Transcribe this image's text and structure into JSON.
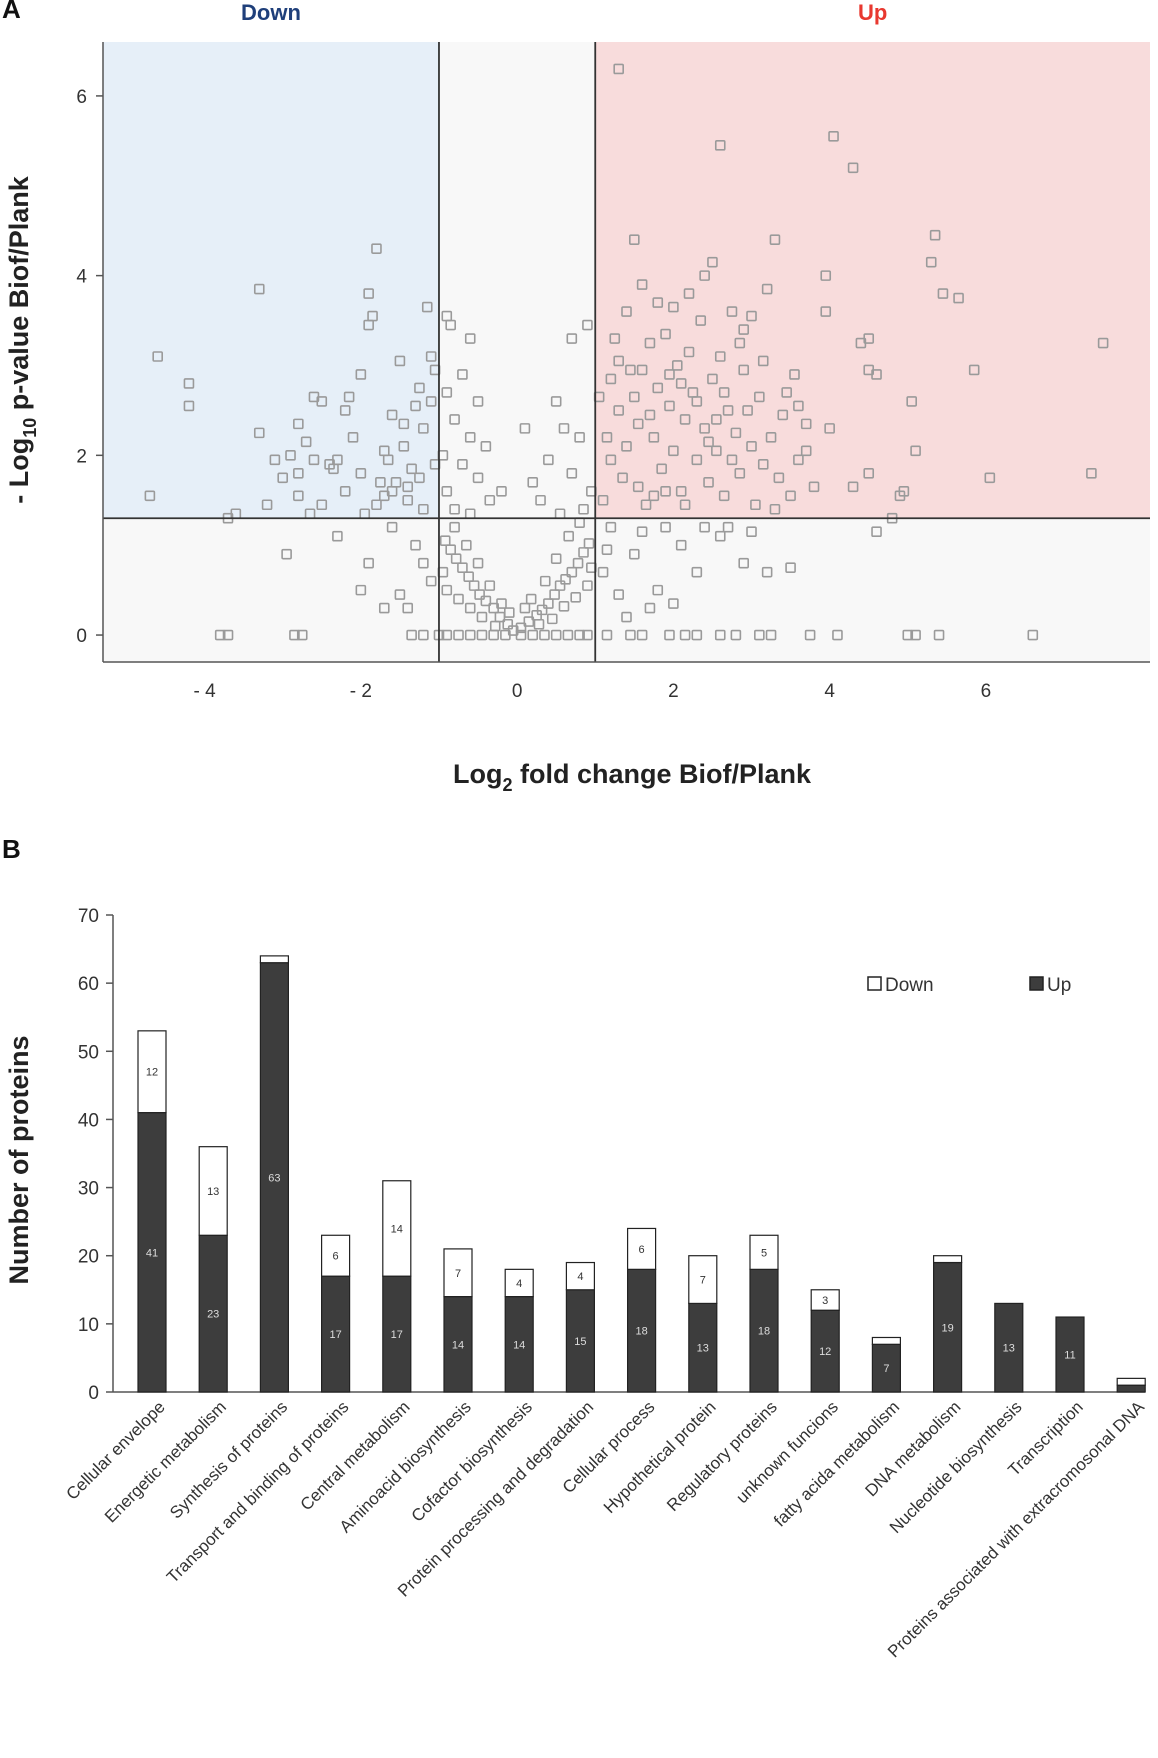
{
  "chart_data": [
    {
      "panel": "A",
      "type": "scatter",
      "title": "",
      "xlabel_prefix": "Log",
      "xlabel_sub": "2",
      "xlabel_rest": " fold change Biof/Plank",
      "ylabel_prefix": "- Log",
      "ylabel_sub": "10",
      "ylabel_rest": " p-value Biof/Plank",
      "xlim": [
        -5.3,
        8.1
      ],
      "ylim": [
        -0.3,
        6.6
      ],
      "xticks": [
        -4,
        -2,
        0,
        2,
        4,
        6
      ],
      "xtick_labels": [
        "- 4",
        "- 2",
        "0",
        "2",
        "4",
        "6"
      ],
      "yticks": [
        0,
        2,
        4,
        6
      ],
      "ytick_labels": [
        "0",
        "2",
        "4",
        "6"
      ],
      "thresholds": {
        "fold_change": [
          -1,
          1
        ],
        "neg_log10_p": 1.3
      },
      "regions": [
        {
          "name": "Down",
          "color": "#1f3f7a",
          "fill": "#e6eff8"
        },
        {
          "name": "Up",
          "color": "#e8382f",
          "fill": "#f8dcdc"
        }
      ],
      "point_color": "#9a9a9a",
      "background_fill": "#f8f8f8",
      "points_highlighted": [
        [
          -4.6,
          3.1
        ],
        [
          -4.2,
          2.8
        ],
        [
          -4.2,
          2.55
        ],
        [
          -4.7,
          1.55
        ],
        [
          -3.7,
          1.3
        ],
        [
          -3.6,
          1.35
        ],
        [
          -3.3,
          3.85
        ],
        [
          -3.3,
          2.25
        ],
        [
          -3.2,
          1.45
        ],
        [
          -3.1,
          1.95
        ],
        [
          -2.9,
          2.0
        ],
        [
          -2.95,
          0.9
        ],
        [
          -2.8,
          2.35
        ],
        [
          -2.8,
          1.8
        ],
        [
          -2.7,
          2.15
        ],
        [
          -2.6,
          2.65
        ],
        [
          -2.5,
          2.6
        ],
        [
          -2.4,
          1.9
        ],
        [
          -2.3,
          1.95
        ],
        [
          -2.2,
          2.5
        ],
        [
          -2.1,
          2.2
        ],
        [
          -2.0,
          1.8
        ],
        [
          -1.9,
          3.45
        ],
        [
          -1.85,
          3.55
        ],
        [
          -1.9,
          3.8
        ],
        [
          -1.8,
          4.3
        ],
        [
          -1.75,
          1.7
        ],
        [
          -1.7,
          2.05
        ],
        [
          -1.6,
          1.6
        ],
        [
          -1.6,
          2.45
        ],
        [
          -1.5,
          3.05
        ],
        [
          -1.45,
          2.1
        ],
        [
          -1.4,
          1.5
        ],
        [
          -1.3,
          2.55
        ],
        [
          -1.25,
          2.75
        ],
        [
          -1.2,
          2.3
        ],
        [
          -1.15,
          3.65
        ],
        [
          -1.1,
          3.1
        ],
        [
          -1.05,
          1.9
        ],
        [
          -1.05,
          2.95
        ],
        [
          -2.5,
          1.45
        ],
        [
          -2.0,
          2.9
        ],
        [
          -2.2,
          1.6
        ],
        [
          -1.8,
          1.45
        ],
        [
          -1.35,
          1.85
        ],
        [
          -3.0,
          1.75
        ],
        [
          -2.65,
          1.35
        ],
        [
          -1.55,
          1.7
        ],
        [
          -1.7,
          1.55
        ],
        [
          -1.2,
          1.4
        ],
        [
          -2.8,
          1.55
        ],
        [
          -1.95,
          1.35
        ],
        [
          -1.45,
          2.35
        ],
        [
          -2.35,
          1.85
        ],
        [
          -1.65,
          1.95
        ],
        [
          -1.25,
          1.75
        ],
        [
          -2.15,
          2.65
        ],
        [
          -1.1,
          2.6
        ],
        [
          -1.4,
          1.65
        ],
        [
          -2.6,
          1.95
        ],
        [
          1.3,
          6.3
        ],
        [
          2.6,
          5.45
        ],
        [
          4.05,
          5.55
        ],
        [
          4.3,
          5.2
        ],
        [
          3.3,
          4.4
        ],
        [
          1.5,
          4.4
        ],
        [
          5.35,
          4.45
        ],
        [
          5.3,
          4.15
        ],
        [
          5.45,
          3.8
        ],
        [
          5.65,
          3.75
        ],
        [
          7.5,
          3.25
        ],
        [
          2.5,
          4.15
        ],
        [
          2.4,
          4.0
        ],
        [
          2.2,
          3.8
        ],
        [
          2.0,
          3.65
        ],
        [
          3.2,
          3.85
        ],
        [
          3.0,
          3.55
        ],
        [
          2.9,
          3.4
        ],
        [
          1.6,
          3.9
        ],
        [
          1.8,
          3.7
        ],
        [
          3.95,
          4.0
        ],
        [
          3.95,
          3.6
        ],
        [
          4.5,
          3.3
        ],
        [
          4.4,
          3.25
        ],
        [
          4.5,
          2.95
        ],
        [
          4.6,
          2.9
        ],
        [
          5.85,
          2.95
        ],
        [
          5.05,
          2.6
        ],
        [
          5.1,
          2.05
        ],
        [
          6.05,
          1.75
        ],
        [
          7.35,
          1.8
        ],
        [
          4.0,
          2.3
        ],
        [
          3.6,
          2.55
        ],
        [
          3.7,
          2.35
        ],
        [
          4.3,
          1.65
        ],
        [
          4.5,
          1.8
        ],
        [
          4.9,
          1.55
        ],
        [
          4.95,
          1.6
        ],
        [
          4.6,
          1.15
        ],
        [
          4.8,
          1.3
        ],
        [
          1.2,
          2.85
        ],
        [
          1.25,
          3.3
        ],
        [
          1.3,
          2.5
        ],
        [
          1.4,
          2.1
        ],
        [
          1.4,
          3.6
        ],
        [
          1.5,
          2.65
        ],
        [
          1.55,
          1.65
        ],
        [
          1.6,
          2.95
        ],
        [
          1.7,
          3.25
        ],
        [
          1.75,
          2.2
        ],
        [
          1.8,
          2.75
        ],
        [
          1.85,
          1.85
        ],
        [
          1.9,
          3.35
        ],
        [
          1.95,
          2.55
        ],
        [
          2.0,
          2.05
        ],
        [
          2.05,
          3.0
        ],
        [
          2.1,
          1.6
        ],
        [
          2.15,
          2.4
        ],
        [
          2.2,
          3.15
        ],
        [
          2.25,
          2.7
        ],
        [
          2.3,
          1.95
        ],
        [
          2.35,
          3.5
        ],
        [
          2.4,
          2.3
        ],
        [
          2.45,
          1.7
        ],
        [
          2.5,
          2.85
        ],
        [
          2.55,
          2.05
        ],
        [
          2.6,
          3.1
        ],
        [
          2.65,
          1.55
        ],
        [
          2.7,
          2.5
        ],
        [
          2.75,
          3.6
        ],
        [
          2.8,
          2.25
        ],
        [
          2.85,
          1.8
        ],
        [
          2.9,
          2.95
        ],
        [
          3.0,
          2.1
        ],
        [
          3.05,
          1.45
        ],
        [
          3.1,
          2.65
        ],
        [
          3.15,
          3.05
        ],
        [
          3.25,
          2.2
        ],
        [
          3.35,
          1.75
        ],
        [
          3.4,
          2.45
        ],
        [
          3.5,
          1.55
        ],
        [
          3.55,
          2.9
        ],
        [
          3.7,
          2.05
        ],
        [
          3.8,
          1.65
        ],
        [
          3.3,
          1.4
        ],
        [
          1.1,
          1.5
        ],
        [
          1.15,
          2.2
        ],
        [
          1.35,
          1.75
        ],
        [
          1.45,
          2.95
        ],
        [
          1.65,
          1.45
        ],
        [
          1.7,
          2.45
        ],
        [
          1.9,
          1.6
        ],
        [
          2.1,
          2.8
        ],
        [
          2.3,
          2.6
        ],
        [
          2.55,
          2.4
        ],
        [
          2.75,
          1.95
        ],
        [
          2.95,
          2.5
        ],
        [
          3.15,
          1.9
        ],
        [
          1.05,
          2.65
        ],
        [
          1.2,
          1.95
        ],
        [
          1.3,
          3.05
        ],
        [
          1.55,
          2.35
        ],
        [
          1.75,
          1.55
        ],
        [
          1.95,
          2.9
        ],
        [
          2.15,
          1.45
        ],
        [
          2.45,
          2.15
        ],
        [
          2.65,
          2.7
        ],
        [
          2.85,
          3.25
        ],
        [
          3.45,
          2.7
        ],
        [
          3.6,
          1.95
        ]
      ],
      "points_background": [
        [
          -3.8,
          0
        ],
        [
          -3.7,
          0
        ],
        [
          -2.85,
          0
        ],
        [
          -2.75,
          0
        ],
        [
          -1.35,
          0
        ],
        [
          -1.2,
          0
        ],
        [
          -1.0,
          0
        ],
        [
          -0.9,
          0
        ],
        [
          -0.75,
          0
        ],
        [
          -0.6,
          0
        ],
        [
          -0.45,
          0
        ],
        [
          -0.3,
          0
        ],
        [
          -0.15,
          0
        ],
        [
          0.05,
          0
        ],
        [
          0.2,
          0
        ],
        [
          0.35,
          0
        ],
        [
          0.5,
          0
        ],
        [
          0.65,
          0
        ],
        [
          0.8,
          0
        ],
        [
          0.9,
          0
        ],
        [
          1.15,
          0
        ],
        [
          1.45,
          0
        ],
        [
          1.6,
          0
        ],
        [
          1.95,
          0
        ],
        [
          2.15,
          0
        ],
        [
          2.3,
          0
        ],
        [
          2.6,
          0
        ],
        [
          2.8,
          0
        ],
        [
          3.1,
          0
        ],
        [
          3.25,
          0
        ],
        [
          3.75,
          0
        ],
        [
          4.1,
          0
        ],
        [
          5.0,
          0
        ],
        [
          5.1,
          0
        ],
        [
          5.4,
          0
        ],
        [
          6.6,
          0
        ],
        [
          -0.05,
          0.05
        ],
        [
          0.05,
          0.08
        ],
        [
          -0.12,
          0.12
        ],
        [
          0.15,
          0.15
        ],
        [
          -0.22,
          0.2
        ],
        [
          0.25,
          0.22
        ],
        [
          -0.3,
          0.3
        ],
        [
          0.32,
          0.28
        ],
        [
          -0.4,
          0.38
        ],
        [
          0.4,
          0.35
        ],
        [
          -0.48,
          0.45
        ],
        [
          0.48,
          0.45
        ],
        [
          -0.55,
          0.55
        ],
        [
          0.55,
          0.55
        ],
        [
          -0.62,
          0.65
        ],
        [
          0.62,
          0.62
        ],
        [
          -0.7,
          0.75
        ],
        [
          0.7,
          0.7
        ],
        [
          -0.78,
          0.85
        ],
        [
          0.78,
          0.8
        ],
        [
          -0.85,
          0.95
        ],
        [
          0.85,
          0.92
        ],
        [
          -0.92,
          1.05
        ],
        [
          0.92,
          1.02
        ],
        [
          -0.2,
          0.35
        ],
        [
          0.18,
          0.4
        ],
        [
          -0.35,
          0.55
        ],
        [
          0.36,
          0.6
        ],
        [
          -0.5,
          0.8
        ],
        [
          0.5,
          0.85
        ],
        [
          -0.65,
          1.0
        ],
        [
          0.66,
          1.1
        ],
        [
          -0.8,
          1.2
        ],
        [
          0.8,
          1.25
        ],
        [
          -0.1,
          0.25
        ],
        [
          0.1,
          0.3
        ],
        [
          -0.28,
          0.1
        ],
        [
          0.28,
          0.12
        ],
        [
          -0.45,
          0.2
        ],
        [
          0.45,
          0.18
        ],
        [
          -0.6,
          0.3
        ],
        [
          0.6,
          0.32
        ],
        [
          -0.75,
          0.4
        ],
        [
          0.75,
          0.42
        ],
        [
          -0.9,
          0.5
        ],
        [
          0.9,
          0.55
        ],
        [
          -0.95,
          0.7
        ],
        [
          0.95,
          0.75
        ],
        [
          -0.9,
          3.55
        ],
        [
          -0.85,
          3.45
        ],
        [
          -0.6,
          3.3
        ],
        [
          -0.7,
          2.9
        ],
        [
          -0.9,
          2.7
        ],
        [
          -0.5,
          2.6
        ],
        [
          -0.8,
          2.4
        ],
        [
          -0.6,
          2.2
        ],
        [
          -0.4,
          2.1
        ],
        [
          -0.95,
          2.0
        ],
        [
          -0.7,
          1.9
        ],
        [
          -0.5,
          1.75
        ],
        [
          -0.9,
          1.6
        ],
        [
          -0.35,
          1.5
        ],
        [
          -0.8,
          1.4
        ],
        [
          -0.6,
          1.35
        ],
        [
          0.9,
          3.45
        ],
        [
          0.7,
          3.3
        ],
        [
          0.5,
          2.6
        ],
        [
          0.6,
          2.3
        ],
        [
          0.4,
          1.95
        ],
        [
          0.8,
          2.2
        ],
        [
          0.7,
          1.8
        ],
        [
          0.95,
          1.6
        ],
        [
          0.3,
          1.5
        ],
        [
          0.85,
          1.4
        ],
        [
          0.55,
          1.35
        ],
        [
          0.2,
          1.7
        ],
        [
          -0.2,
          1.6
        ],
        [
          0.1,
          2.3
        ],
        [
          -1.6,
          1.2
        ],
        [
          -1.9,
          0.8
        ],
        [
          -2.0,
          0.5
        ],
        [
          -1.5,
          0.45
        ],
        [
          -1.3,
          1.0
        ],
        [
          -1.1,
          0.6
        ],
        [
          -2.3,
          1.1
        ],
        [
          -1.7,
          0.3
        ],
        [
          -1.2,
          0.8
        ],
        [
          -1.4,
          0.3
        ],
        [
          1.2,
          1.2
        ],
        [
          1.5,
          0.9
        ],
        [
          1.8,
          0.5
        ],
        [
          2.1,
          1.0
        ],
        [
          2.3,
          0.7
        ],
        [
          2.6,
          1.1
        ],
        [
          2.9,
          0.8
        ],
        [
          3.2,
          0.7
        ],
        [
          3.5,
          0.75
        ],
        [
          1.3,
          0.45
        ],
        [
          1.6,
          1.15
        ],
        [
          1.9,
          1.2
        ],
        [
          2.4,
          1.2
        ],
        [
          3.0,
          1.15
        ],
        [
          1.1,
          0.7
        ],
        [
          1.7,
          0.3
        ],
        [
          2.0,
          0.35
        ],
        [
          1.4,
          0.2
        ],
        [
          1.15,
          0.95
        ],
        [
          2.7,
          1.2
        ]
      ]
    },
    {
      "panel": "B",
      "type": "bar",
      "stacked": true,
      "title": "",
      "xlabel": "",
      "ylabel": "Number of proteins",
      "ylim": [
        0,
        70
      ],
      "yticks": [
        0,
        10,
        20,
        30,
        40,
        50,
        60,
        70
      ],
      "legend_position": "top-right",
      "categories": [
        "Cellular envelope",
        "Energetic metabolism",
        "Synthesis of proteins",
        "Transport and binding of proteins",
        "Central metabolism",
        "Aminoacid biosynthesis",
        "Cofactor biosynthesis",
        "Protein processing and degradation",
        "Cellular process",
        "Hypothetical protein",
        "Regulatory proteins",
        "unknown funcions",
        "fatty acida metabolism",
        "DNA metabolism",
        "Nucleotide biosynthesis",
        "Transcription",
        "Proteins associated with extracromosonal DNA"
      ],
      "series": [
        {
          "name": "Up",
          "color": "#3d3d3d",
          "label_color": "#dddddd",
          "values": [
            41,
            23,
            63,
            17,
            17,
            14,
            14,
            15,
            18,
            13,
            18,
            12,
            7,
            19,
            13,
            11,
            1
          ],
          "labels": [
            "41",
            "23",
            "63",
            "17",
            "17",
            "14",
            "14",
            "15",
            "18",
            "13",
            "18",
            "12",
            "7",
            "19",
            "13",
            "11",
            ""
          ]
        },
        {
          "name": "Down",
          "color": "#ffffff",
          "label_color": "#333333",
          "values": [
            12,
            13,
            1,
            6,
            14,
            7,
            4,
            4,
            6,
            7,
            5,
            3,
            1,
            1,
            0,
            0,
            1
          ],
          "labels": [
            "12",
            "13",
            "",
            "6",
            "14",
            "7",
            "4",
            "4",
            "6",
            "7",
            "5",
            "3",
            "",
            "",
            "",
            "",
            ""
          ]
        }
      ]
    }
  ]
}
